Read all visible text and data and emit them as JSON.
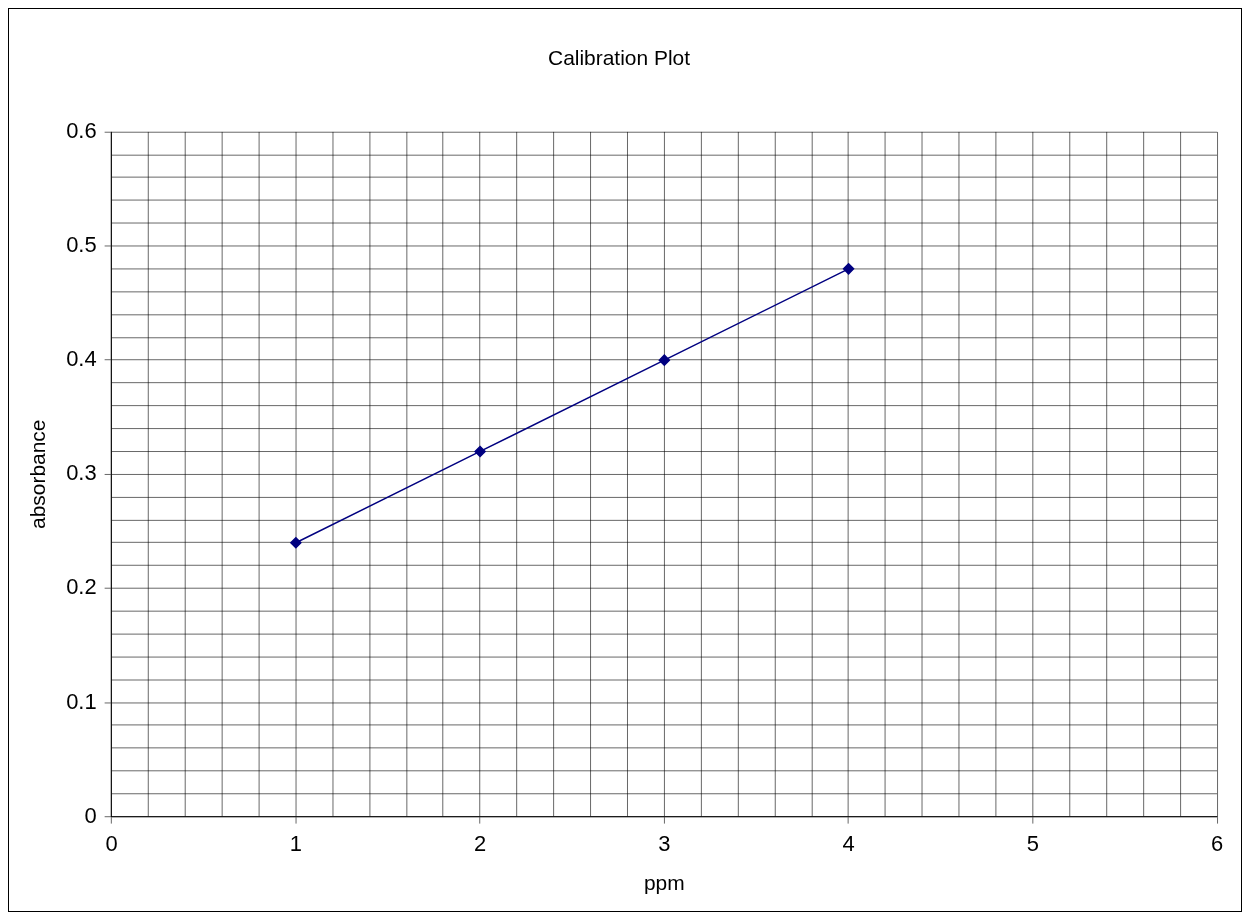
{
  "chart_data": {
    "type": "line",
    "title": "Calibration Plot",
    "xlabel": "ppm",
    "ylabel": "absorbance",
    "x": [
      1,
      2,
      3,
      4
    ],
    "series": [
      {
        "color": "#000080",
        "values": [
          0.24,
          0.32,
          0.4,
          0.48
        ]
      }
    ],
    "xlim": [
      0,
      6
    ],
    "xticks": [
      0,
      {
        "value": 0.2,
        "label": null
      },
      {
        "value": 0.4,
        "label": null
      },
      {
        "value": 0.6,
        "label": null
      },
      {
        "value": 0.8,
        "label": null
      },
      1,
      {
        "value": 1.2,
        "label": null
      },
      {
        "value": 1.4,
        "label": null
      },
      {
        "value": 1.6,
        "label": null
      },
      {
        "value": 1.8,
        "label": null
      },
      2,
      {
        "value": 2.2,
        "label": null
      },
      {
        "value": 2.4,
        "label": null
      },
      {
        "value": 2.6,
        "label": null
      },
      {
        "value": 2.8,
        "label": null
      },
      3,
      {
        "value": 3.2,
        "label": null
      },
      {
        "value": 3.4,
        "label": null
      },
      {
        "value": 3.6,
        "label": null
      },
      {
        "value": 3.8,
        "label": null
      },
      4,
      {
        "value": 4.2,
        "label": null
      },
      {
        "value": 4.4,
        "label": null
      },
      {
        "value": 4.6,
        "label": null
      },
      {
        "value": 4.8,
        "label": null
      },
      5,
      {
        "value": 5.2,
        "label": null
      },
      {
        "value": 5.4,
        "label": null
      },
      {
        "value": 5.6,
        "label": null
      },
      {
        "value": 5.8,
        "label": null
      },
      6
    ],
    "ylim": [
      0,
      0.6
    ],
    "yticks": [
      0,
      {
        "value": 0.02,
        "label": null
      },
      {
        "value": 0.04,
        "label": null
      },
      {
        "value": 0.06,
        "label": null
      },
      {
        "value": 0.08,
        "label": null
      },
      0.1,
      {
        "value": 0.12,
        "label": null
      },
      {
        "value": 0.14,
        "label": null
      },
      {
        "value": 0.16,
        "label": null
      },
      {
        "value": 0.18,
        "label": null
      },
      0.2,
      {
        "value": 0.22,
        "label": null
      },
      {
        "value": 0.24,
        "label": null
      },
      {
        "value": 0.26,
        "label": null
      },
      {
        "value": 0.28,
        "label": null
      },
      0.3,
      {
        "value": 0.32,
        "label": null
      },
      {
        "value": 0.34,
        "label": null
      },
      {
        "value": 0.36,
        "label": null
      },
      {
        "value": 0.38,
        "label": null
      },
      0.4,
      {
        "value": 0.42,
        "label": null
      },
      {
        "value": 0.44,
        "label": null
      },
      {
        "value": 0.46,
        "label": null
      },
      {
        "value": 0.48,
        "label": null
      },
      0.5,
      {
        "value": 0.52,
        "label": null
      },
      {
        "value": 0.54,
        "label": null
      },
      {
        "value": 0.56,
        "label": null
      },
      {
        "value": 0.58,
        "label": null
      },
      0.6
    ],
    "grid": true,
    "marker": "diamond",
    "line_style": "solid",
    "legend": false
  }
}
